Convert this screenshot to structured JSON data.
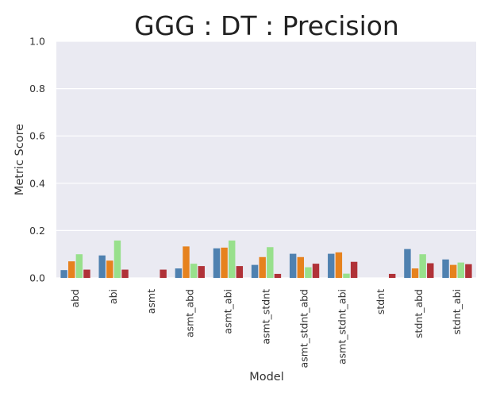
{
  "chart_data": {
    "type": "bar",
    "title": "GGG : DT : Precision",
    "xlabel": "Model",
    "ylabel": "Metric Score",
    "ylim": [
      0,
      1.0
    ],
    "yticks": [
      "0.0",
      "0.2",
      "0.4",
      "0.6",
      "0.8",
      "1.0"
    ],
    "grid": true,
    "legend": "none",
    "categories": [
      "abd",
      "abi",
      "asmt",
      "asmt_abd",
      "asmt_abi",
      "asmt_stdnt",
      "asmt_stdnt_abd",
      "asmt_stdnt_abi",
      "stdnt",
      "stdnt_abd",
      "stdnt_abi"
    ],
    "series": [
      {
        "color": "#4f81b0",
        "values": [
          0.033,
          0.095,
          0.0,
          0.04,
          0.125,
          0.055,
          0.102,
          0.102,
          0.0,
          0.122,
          0.078
        ]
      },
      {
        "color": "#e6821e",
        "values": [
          0.07,
          0.073,
          0.0,
          0.133,
          0.128,
          0.088,
          0.088,
          0.108,
          0.0,
          0.04,
          0.055
        ]
      },
      {
        "color": "#98e08c",
        "values": [
          0.1,
          0.158,
          0.0,
          0.06,
          0.158,
          0.13,
          0.045,
          0.018,
          0.0,
          0.1,
          0.065
        ]
      },
      {
        "color": "#b03238",
        "values": [
          0.035,
          0.035,
          0.035,
          0.05,
          0.05,
          0.017,
          0.06,
          0.068,
          0.017,
          0.062,
          0.058
        ]
      }
    ],
    "colors": {
      "plot_background": "#eaeaf2",
      "grid": "#ffffff"
    }
  }
}
